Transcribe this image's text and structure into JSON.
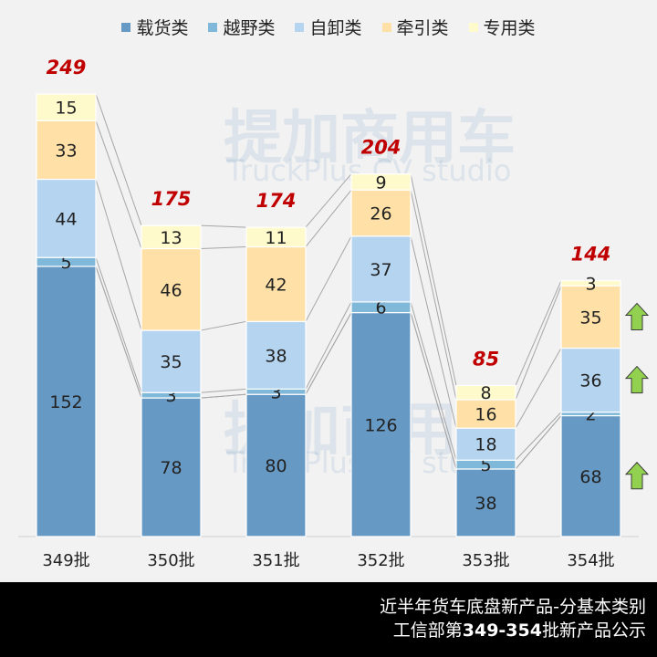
{
  "chart_data": {
    "type": "bar",
    "stacked": true,
    "categories": [
      "349批",
      "350批",
      "351批",
      "352批",
      "353批",
      "354批"
    ],
    "series": [
      {
        "name": "载货类",
        "color": "#6699c4",
        "values": [
          152,
          78,
          80,
          126,
          38,
          68
        ]
      },
      {
        "name": "越野类",
        "color": "#7fb8d8",
        "values": [
          5,
          3,
          3,
          6,
          5,
          2
        ]
      },
      {
        "name": "自卸类",
        "color": "#b4d4f0",
        "values": [
          44,
          35,
          38,
          37,
          18,
          36
        ]
      },
      {
        "name": "牵引类",
        "color": "#ffe1a8",
        "values": [
          33,
          46,
          42,
          26,
          16,
          35
        ]
      },
      {
        "name": "专用类",
        "color": "#fffacc",
        "values": [
          15,
          13,
          11,
          9,
          8,
          3
        ]
      }
    ],
    "totals": [
      249,
      175,
      174,
      204,
      85,
      144
    ],
    "total_label_color": "#c00000",
    "ylim": [
      0,
      260
    ],
    "grid": false,
    "legend_position": "top",
    "series_connector_lines": true,
    "up_arrows": {
      "category": "354批",
      "series": [
        "载货类",
        "自卸类",
        "牵引类"
      ],
      "color": "#92d050",
      "icon": "arrow-up-icon"
    }
  },
  "watermark": {
    "cn": "提加商用车",
    "en": "TruckPlus CV studio"
  },
  "footer": {
    "line1": "近半年货车底盘新产品-分基本类别",
    "line2_prefix": "工信部第",
    "line2_bold": "349-354",
    "line2_suffix": "批新产品公示"
  }
}
